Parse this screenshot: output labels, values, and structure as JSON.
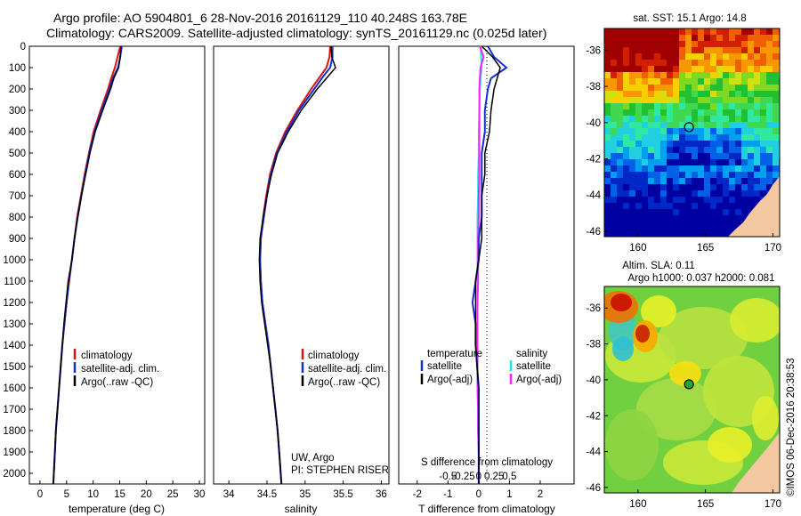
{
  "header": {
    "line1": "Argo profile: AO 5904801_6 28-Nov-2016 20161129_110 40.248S 163.78E",
    "line2": "Climatology: CARS2009. Satellite-adjusted climatology: synTS_20161129.nc (0.025d later)"
  },
  "colors": {
    "climatology": "#e01010",
    "satellite": "#1030d0",
    "argo": "#000000",
    "sal_satellite": "#20e0e0",
    "sal_argo": "#ff20ff",
    "land": "#f4c8a0"
  },
  "depth_axis": {
    "label": "",
    "ylim": [
      0,
      2050
    ],
    "ticks": [
      "0",
      "100",
      "200",
      "300",
      "400",
      "500",
      "600",
      "700",
      "800",
      "900",
      "1000",
      "1100",
      "1200",
      "1300",
      "1400",
      "1500",
      "1600",
      "1700",
      "1800",
      "1900",
      "2000"
    ]
  },
  "temp_panel": {
    "xlabel": "temperature (deg C)",
    "xlim": [
      -2,
      31
    ],
    "xticks": [
      "0",
      "5",
      "10",
      "15",
      "20",
      "25",
      "30"
    ],
    "legend": [
      "climatology",
      "satellite-adj. clim.",
      "Argo(..raw -QC)"
    ]
  },
  "sal_panel": {
    "xlabel": "salinity",
    "xlim": [
      33.8,
      36.1
    ],
    "xticks": [
      "34",
      "34.5",
      "35",
      "35.5",
      "36"
    ],
    "legend": [
      "climatology",
      "satellite-adj. clim.",
      "Argo(..raw -QC)"
    ],
    "note1": "UW, Argo",
    "note2": "PI: STEPHEN RISER"
  },
  "diff_panel": {
    "xlabel": "T difference from climatology",
    "toplabel": "S difference from climatology",
    "xlim": [
      -2.6,
      3.1
    ],
    "t_xticks": [
      "-2",
      "-1",
      "0",
      "1",
      "2"
    ],
    "s_xticks": [
      "-0.5",
      "-0.25",
      "0",
      "0.25",
      "0.5"
    ],
    "legend_temp_title": "temperature",
    "legend_sal_title": "salinity",
    "legend_temp": [
      "satellite",
      "Argo(-adj)"
    ],
    "legend_sal": [
      "satellite",
      "Argo(-adj)"
    ]
  },
  "map1": {
    "title": "sat. SST: 15.1  Argo: 14.8",
    "yticks": [
      "-36",
      "-38",
      "-40",
      "-42",
      "-44",
      "-46"
    ],
    "xticks": [
      "160",
      "165",
      "170"
    ],
    "lat_range": [
      -46.3,
      -34.8
    ],
    "lon_range": [
      157.5,
      170.5
    ],
    "float_lon": 163.78,
    "float_lat": -40.25
  },
  "map2": {
    "title1": "Altim. SLA: 0.11",
    "title2": "Argo h1000: 0.037 h2000: 0.081",
    "yticks": [
      "-36",
      "-38",
      "-40",
      "-42",
      "-44",
      "-46"
    ],
    "xticks": [
      "160",
      "165",
      "170"
    ],
    "float_lon": 163.78,
    "float_lat": -40.25
  },
  "footer": {
    "credit": "©IMOS 06-Dec-2016 20:38:53"
  },
  "chart_data": {
    "type": "line",
    "title": "Argo profile: AO 5904801_6 28-Nov-2016 20161129_110 40.248S 163.78E",
    "depth": [
      0,
      50,
      100,
      150,
      200,
      300,
      400,
      500,
      600,
      700,
      800,
      900,
      1000,
      1100,
      1200,
      1300,
      1400,
      1500,
      1600,
      1700,
      1800,
      1900,
      2000,
      2050
    ],
    "temperature": {
      "xlabel": "temperature (deg C)",
      "series": [
        {
          "name": "climatology",
          "values": [
            15.1,
            14.6,
            14.1,
            13.4,
            12.8,
            11.4,
            10.1,
            9.2,
            8.4,
            7.7,
            7.0,
            6.5,
            6.0,
            5.5,
            5.0,
            4.6,
            4.2,
            3.9,
            3.6,
            3.3,
            3.0,
            2.8,
            2.6,
            2.5
          ]
        },
        {
          "name": "satellite-adj. clim.",
          "values": [
            15.4,
            15.1,
            14.7,
            13.7,
            13.1,
            11.6,
            10.3,
            9.3,
            8.5,
            7.8,
            7.1,
            6.5,
            6.0,
            5.4,
            5.0,
            4.6,
            4.2,
            3.9,
            3.6,
            3.3,
            3.0,
            2.8,
            2.6,
            2.5
          ]
        },
        {
          "name": "Argo(..raw -QC)",
          "values": [
            15.2,
            15.1,
            14.8,
            13.9,
            13.3,
            11.8,
            10.4,
            9.4,
            8.6,
            7.8,
            7.1,
            6.5,
            6.0,
            5.3,
            4.9,
            4.5,
            4.2,
            3.9,
            3.6,
            3.3,
            3.0,
            2.8,
            2.6,
            2.5
          ]
        }
      ]
    },
    "salinity": {
      "xlabel": "salinity",
      "series": [
        {
          "name": "climatology",
          "values": [
            35.33,
            35.32,
            35.28,
            35.18,
            35.08,
            34.9,
            34.74,
            34.62,
            34.54,
            34.49,
            34.45,
            34.42,
            34.41,
            34.42,
            34.44,
            34.48,
            34.52,
            34.55,
            34.58,
            34.61,
            34.64,
            34.66,
            34.68,
            34.69
          ]
        },
        {
          "name": "satellite-adj. clim.",
          "values": [
            35.36,
            35.36,
            35.33,
            35.22,
            35.12,
            34.92,
            34.76,
            34.63,
            34.55,
            34.5,
            34.46,
            34.42,
            34.41,
            34.42,
            34.44,
            34.48,
            34.52,
            34.55,
            34.58,
            34.61,
            34.64,
            34.66,
            34.68,
            34.69
          ]
        },
        {
          "name": "Argo(..raw -QC)",
          "values": [
            35.34,
            35.35,
            35.4,
            35.28,
            35.16,
            34.95,
            34.78,
            34.64,
            34.56,
            34.5,
            34.45,
            34.41,
            34.4,
            34.41,
            34.43,
            34.47,
            34.51,
            34.55,
            34.58,
            34.61,
            34.64,
            34.66,
            34.68,
            34.69
          ]
        }
      ]
    },
    "differences": {
      "xlabel": "T difference from climatology",
      "series": [
        {
          "name": "temperature satellite",
          "values": [
            0.3,
            0.5,
            0.9,
            0.4,
            0.3,
            0.2,
            0.2,
            0.1,
            0.1,
            0.1,
            0.1,
            0.0,
            0.0,
            -0.1,
            -0.2,
            -0.1,
            -0.1,
            -0.05,
            0.0,
            0.0,
            0.0,
            0.0,
            0.0,
            0.0
          ]
        },
        {
          "name": "temperature Argo(-adj)",
          "values": [
            0.1,
            0.45,
            0.7,
            0.6,
            0.5,
            0.4,
            0.35,
            0.2,
            0.2,
            0.1,
            0.1,
            0.1,
            0.0,
            -0.1,
            -0.1,
            -0.1,
            -0.1,
            -0.05,
            0.0,
            0.0,
            0.0,
            0.0,
            0.0,
            0.0
          ]
        },
        {
          "name": "salinity satellite",
          "values": [
            0.03,
            0.04,
            0.05,
            0.03,
            0.02,
            0.01,
            0.0,
            0.0,
            -0.01,
            -0.01,
            -0.02,
            -0.02,
            -0.02,
            -0.02,
            -0.02,
            -0.02,
            -0.02,
            -0.02,
            -0.02,
            -0.01,
            -0.01,
            0.0,
            0.0,
            0.0
          ]
        },
        {
          "name": "salinity Argo(-adj)",
          "values": [
            0.02,
            0.08,
            0.03,
            0.02,
            0.01,
            0.01,
            0.01,
            0.01,
            0.01,
            0.0,
            0.0,
            -0.01,
            -0.01,
            -0.01,
            -0.02,
            -0.02,
            -0.02,
            -0.02,
            -0.02,
            -0.01,
            -0.01,
            0.0,
            0.0,
            0.0
          ]
        }
      ]
    }
  }
}
